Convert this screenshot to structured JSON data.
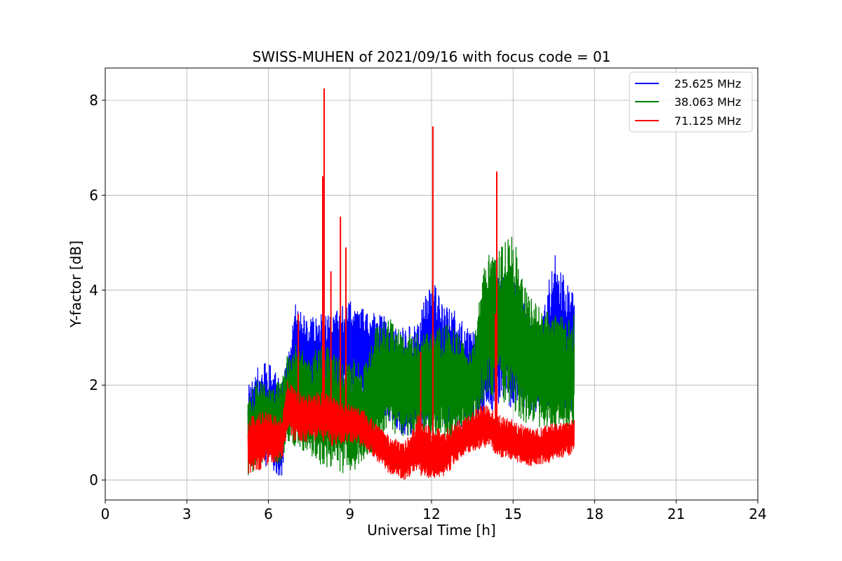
{
  "chart_data": {
    "type": "line",
    "title": "SWISS-MUHEN of 2021/09/16 with focus code = 01",
    "xlabel": "Universal Time [h]",
    "ylabel": "Y-factor [dB]",
    "xlim": [
      0,
      24
    ],
    "ylim": [
      -0.42,
      8.68
    ],
    "xticks": [
      0,
      3,
      6,
      9,
      12,
      15,
      18,
      21,
      24
    ],
    "yticks": [
      0,
      2,
      4,
      6,
      8
    ],
    "grid": true,
    "legend_position": "top-right",
    "series": [
      {
        "name": "25.625 MHz",
        "color": "#0000ff",
        "x": [
          5.25,
          5.6,
          6.0,
          6.5,
          6.7,
          7.0,
          7.5,
          8.0,
          8.5,
          9.0,
          9.5,
          10.0,
          10.5,
          11.0,
          11.5,
          12.0,
          12.5,
          13.0,
          13.5,
          14.0,
          14.5,
          15.0,
          15.5,
          16.0,
          16.5,
          17.0,
          17.25
        ],
        "upper": [
          2.0,
          2.4,
          2.5,
          2.1,
          2.6,
          3.7,
          3.4,
          3.5,
          3.6,
          3.8,
          3.6,
          3.6,
          3.3,
          3.2,
          3.3,
          4.4,
          3.7,
          3.5,
          3.1,
          3.5,
          4.5,
          4.2,
          3.7,
          3.2,
          4.8,
          4.1,
          4.0
        ],
        "lower": [
          0.3,
          0.2,
          0.3,
          0.0,
          1.5,
          1.3,
          1.5,
          1.6,
          1.7,
          1.6,
          1.5,
          1.4,
          1.2,
          0.9,
          1.0,
          1.2,
          1.1,
          1.1,
          1.2,
          1.3,
          1.6,
          1.5,
          1.5,
          1.4,
          1.4,
          1.5,
          1.4
        ]
      },
      {
        "name": "38.063 MHz",
        "color": "#008000",
        "x": [
          5.25,
          5.6,
          6.0,
          6.5,
          6.7,
          7.0,
          7.5,
          8.0,
          8.5,
          9.0,
          9.5,
          10.0,
          10.5,
          11.0,
          11.5,
          12.0,
          12.5,
          13.0,
          13.5,
          14.0,
          14.5,
          15.0,
          15.5,
          16.0,
          16.5,
          17.0,
          17.25
        ],
        "upper": [
          1.8,
          2.1,
          2.0,
          2.1,
          2.7,
          3.0,
          2.6,
          2.9,
          2.6,
          2.6,
          2.4,
          3.3,
          3.4,
          3.0,
          3.2,
          3.1,
          3.3,
          3.1,
          2.9,
          4.7,
          4.9,
          5.2,
          4.0,
          3.6,
          3.5,
          3.4,
          3.5
        ],
        "lower": [
          0.0,
          0.3,
          0.4,
          0.3,
          0.8,
          0.7,
          0.5,
          0.3,
          0.2,
          0.1,
          0.4,
          0.7,
          1.0,
          0.9,
          0.8,
          0.9,
          0.8,
          0.9,
          1.0,
          1.8,
          1.7,
          1.4,
          1.2,
          1.1,
          1.0,
          1.1,
          1.0
        ]
      },
      {
        "name": "71.125 MHz",
        "color": "#ff0000",
        "x": [
          5.25,
          5.6,
          6.0,
          6.5,
          6.7,
          7.0,
          7.5,
          8.0,
          8.5,
          9.0,
          9.5,
          10.0,
          10.5,
          11.0,
          11.5,
          12.0,
          12.5,
          13.0,
          13.5,
          14.0,
          14.5,
          15.0,
          15.5,
          16.0,
          16.5,
          17.0,
          17.25
        ],
        "upper": [
          1.3,
          1.4,
          1.5,
          1.3,
          2.1,
          1.9,
          1.8,
          1.9,
          1.7,
          1.6,
          1.5,
          1.2,
          0.9,
          0.8,
          1.4,
          1.1,
          1.1,
          1.3,
          1.5,
          1.6,
          1.4,
          1.3,
          1.1,
          1.1,
          1.2,
          1.2,
          1.3
        ],
        "lower": [
          0.1,
          0.2,
          0.3,
          0.4,
          0.9,
          0.8,
          0.8,
          0.8,
          0.7,
          0.8,
          0.7,
          0.4,
          0.1,
          0.0,
          0.1,
          0.0,
          0.1,
          0.4,
          0.6,
          0.7,
          0.5,
          0.4,
          0.3,
          0.3,
          0.4,
          0.5,
          0.6
        ],
        "spikes": [
          {
            "x": 7.1,
            "y": 3.5
          },
          {
            "x": 8.0,
            "y": 6.4
          },
          {
            "x": 8.05,
            "y": 8.25
          },
          {
            "x": 8.3,
            "y": 4.4
          },
          {
            "x": 8.65,
            "y": 5.55
          },
          {
            "x": 8.85,
            "y": 4.9
          },
          {
            "x": 11.6,
            "y": 2.7
          },
          {
            "x": 12.05,
            "y": 7.45
          },
          {
            "x": 14.4,
            "y": 6.5
          },
          {
            "x": 14.35,
            "y": 3.5
          }
        ]
      }
    ]
  }
}
